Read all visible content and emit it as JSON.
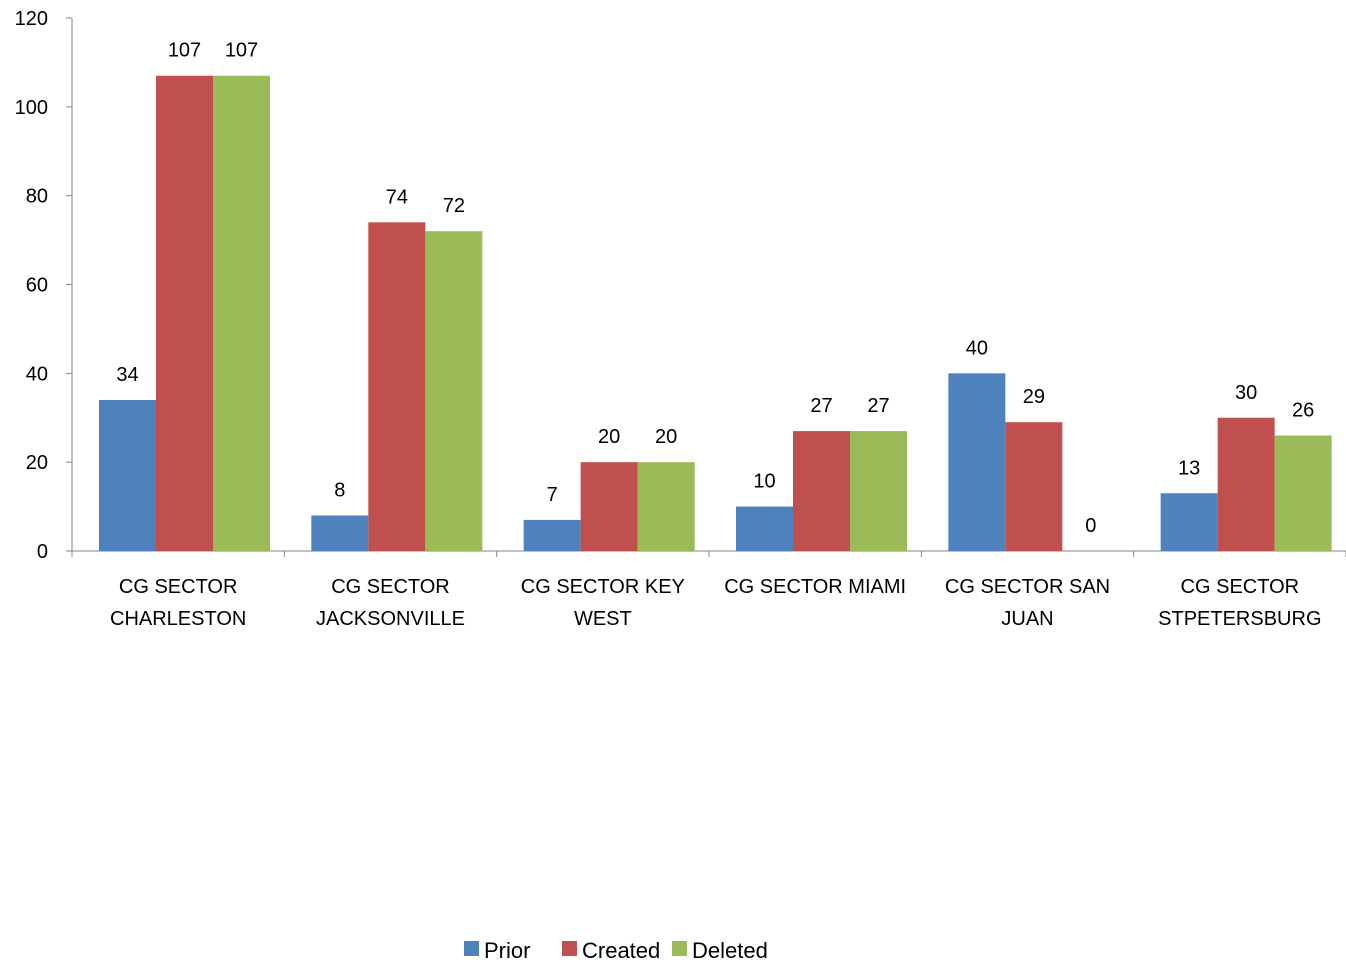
{
  "chart_data": {
    "type": "bar",
    "categories": [
      [
        "CG SECTOR",
        "CHARLESTON"
      ],
      [
        "CG SECTOR",
        "JACKSONVILLE"
      ],
      [
        "CG SECTOR KEY",
        "WEST"
      ],
      [
        "CG SECTOR MIAMI"
      ],
      [
        "CG SECTOR SAN",
        "JUAN"
      ],
      [
        "CG SECTOR",
        "STPETERSBURG"
      ]
    ],
    "series": [
      {
        "name": "Prior",
        "color": "#4F81BD",
        "values": [
          34,
          8,
          7,
          10,
          40,
          13
        ]
      },
      {
        "name": "Created",
        "color": "#C0504D",
        "values": [
          107,
          74,
          20,
          27,
          29,
          30
        ]
      },
      {
        "name": "Deleted",
        "color": "#9BBB59",
        "values": [
          107,
          72,
          20,
          27,
          0,
          26
        ]
      }
    ],
    "ylim": [
      0,
      120
    ],
    "yticks": [
      0,
      20,
      40,
      60,
      80,
      100,
      120
    ],
    "grid": false,
    "legend_position": "bottom",
    "show_data_labels": true
  }
}
